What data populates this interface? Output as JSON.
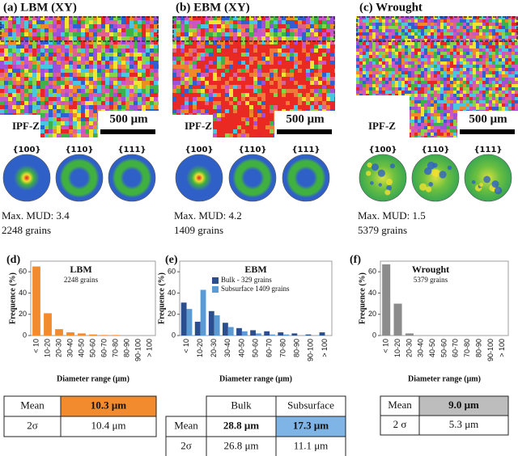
{
  "panels": [
    {
      "label": "(a) LBM (XY)",
      "ipf": "IPF-Z",
      "scale": "500 μm",
      "pole_figures": [
        "{100}",
        "{110}",
        "{111}"
      ],
      "mud": "Max. MUD: 3.4",
      "grains": "2248 grains"
    },
    {
      "label": "(b) EBM (XY)",
      "ipf": "IPF-Z",
      "scale": "500 μm",
      "pole_figures": [
        "{100}",
        "{110}",
        "{111}"
      ],
      "mud": "Max. MUD: 4.2",
      "grains": "1409 grains"
    },
    {
      "label": "(c) Wrought",
      "ipf": "IPF-Z",
      "scale": "500 μm",
      "pole_figures": [
        "{100}",
        "{110}",
        "{111}"
      ],
      "mud": "Max. MUD: 1.5",
      "grains": "5379 grains"
    }
  ],
  "chart_data": [
    {
      "type": "bar",
      "panel": "(d)",
      "title": "LBM",
      "subtitle": "2248 grains",
      "ylabel": "Frequence (%)",
      "xlabel": "Diameter range (μm)",
      "categories": [
        "< 10",
        "10-20",
        "20-30",
        "30-40",
        "40-50",
        "50-60",
        "60-70",
        "70-80",
        "80-90",
        "90-100",
        "> 100"
      ],
      "values": [
        65,
        21,
        6,
        3,
        2,
        1,
        0.5,
        0.5,
        0,
        0,
        0
      ],
      "color": "#f28a2e",
      "ylim": [
        0,
        70
      ],
      "yticks": [
        0,
        20,
        40,
        60
      ]
    },
    {
      "type": "grouped-bar",
      "panel": "(e)",
      "title": "EBM",
      "ylabel": "Frequence (%)",
      "xlabel": "Diameter range (μm)",
      "categories": [
        "< 10",
        "10-20",
        "20-30",
        "30-40",
        "40-50",
        "50-60",
        "60-70",
        "70-80",
        "80-90",
        "90-100",
        "> 100"
      ],
      "series": [
        {
          "name": "Bulk - 329 grains",
          "color": "#2b4f8e",
          "values": [
            31,
            13,
            23,
            12,
            7,
            5,
            4,
            3,
            2,
            1,
            3
          ]
        },
        {
          "name": "Subsurface 1409 grains",
          "color": "#5b9bd5",
          "values": [
            25,
            43,
            19,
            8,
            4,
            2,
            1,
            1,
            0,
            0,
            0
          ]
        }
      ],
      "ylim": [
        0,
        70
      ],
      "yticks": [
        0,
        20,
        40,
        60
      ]
    },
    {
      "type": "bar",
      "panel": "(f)",
      "title": "Wrought",
      "subtitle": "5379 grains",
      "ylabel": "Frequence (%)",
      "xlabel": "Diameter range (μm)",
      "categories": [
        "< 10",
        "10-20",
        "20-30",
        "30-40",
        "40-50",
        "50-60",
        "60-70",
        "70-80",
        "80-90",
        "90-100",
        "> 100"
      ],
      "values": [
        67,
        30,
        2,
        0,
        0,
        0,
        0,
        0,
        0,
        0,
        0
      ],
      "color": "#8c8c8c",
      "ylim": [
        0,
        70
      ],
      "yticks": [
        0,
        20,
        40,
        60
      ]
    }
  ],
  "tables": [
    {
      "rows": [
        [
          "Mean",
          "10.3 μm"
        ],
        [
          "2σ",
          "10.4 μm"
        ]
      ]
    },
    {
      "header": [
        "Bulk",
        "Subsurface"
      ],
      "rows": [
        [
          "Mean",
          "28.8 μm",
          "17.3 μm"
        ],
        [
          "2σ",
          "26.8 μm",
          "11.1 μm"
        ]
      ]
    },
    {
      "rows": [
        [
          "Mean",
          "9.0 μm"
        ],
        [
          "2 σ",
          "5.3 μm"
        ]
      ]
    }
  ]
}
